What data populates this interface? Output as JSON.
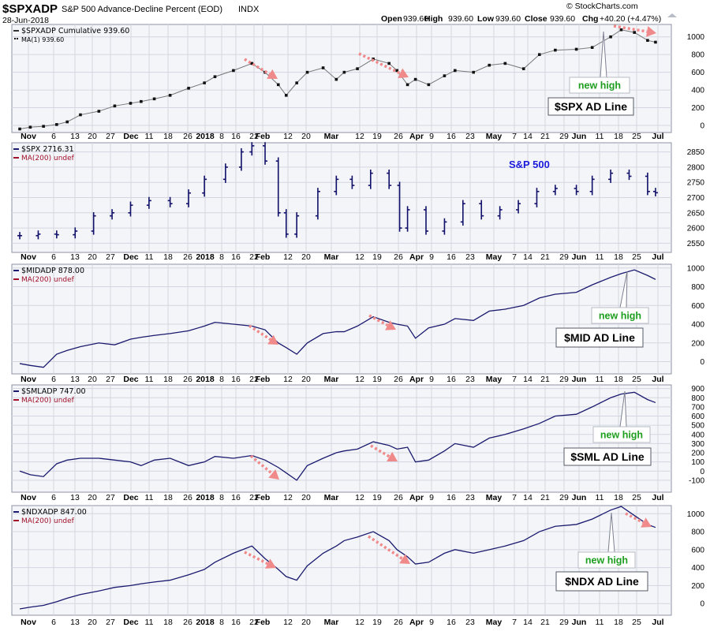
{
  "header": {
    "symbol": "$SPXADP",
    "name": "S&P 500 Advance-Decline Percent (EOD)",
    "exchange": "INDX",
    "date": "28-Jun-2018",
    "open_label": "Open",
    "open": "939.60",
    "high_label": "High",
    "high": "939.60",
    "low_label": "Low",
    "low": "939.60",
    "close_label": "Close",
    "close": "939.60",
    "chg_label": "Chg",
    "chg": "+40.20 (+4.47%)",
    "watermark": "© StockCharts.com"
  },
  "x_labels": [
    "Nov",
    "6",
    "13",
    "20",
    "27",
    "Dec",
    "11",
    "18",
    "26",
    "2018",
    "8",
    "16",
    "22",
    "Feb",
    "12",
    "20",
    "Mar",
    "12",
    "19",
    "26",
    "Apr",
    "9",
    "16",
    "23",
    "May",
    "7",
    "14",
    "21",
    "29",
    "Jun",
    "11",
    "18",
    "25",
    "Jul"
  ],
  "x_bold": [
    "Nov",
    "Dec",
    "2018",
    "Feb",
    "Mar",
    "Apr",
    "May",
    "Jun",
    "Jul"
  ],
  "panels": [
    {
      "id": "spx-ad",
      "legend": "$SPXADP Cumulative 939.60",
      "ma": "MA(1) 939.60",
      "ma_style": "small",
      "callout": "$SPX AD Line",
      "new_high": "new high"
    },
    {
      "id": "spx",
      "legend": "$SPX 2716.31",
      "ma": "MA(200) undef",
      "callout": "S&P 500"
    },
    {
      "id": "mid-ad",
      "legend": "$MIDADP 878.00",
      "ma": "MA(200) undef",
      "callout": "$MID AD Line",
      "new_high": "new high"
    },
    {
      "id": "sml-ad",
      "legend": "$SMLADP 747.00",
      "ma": "MA(200) undef",
      "callout": "$SML AD Line",
      "new_high": "new high"
    },
    {
      "id": "ndx-ad",
      "legend": "$NDXADP 847.00",
      "ma": "MA(200) undef",
      "callout": "$NDX AD Line",
      "new_high": "new high"
    }
  ],
  "colors": {
    "line": "#1a1a6e",
    "dots": "#111111",
    "bars": "#10106a",
    "arrow": "#f08a8a",
    "panel_bg": "#f4f5f9",
    "grid": "#d3d6e0",
    "new_high": "#1e9e1e",
    "sp_label": "#1b1bdc",
    "ma_label": "#a0102a"
  },
  "chart_data": [
    {
      "type": "line",
      "title": "$SPXADP Cumulative",
      "x": [
        "2017-10-30",
        "2017-11-03",
        "2017-11-08",
        "2017-11-13",
        "2017-11-17",
        "2017-11-22",
        "2017-11-29",
        "2017-12-05",
        "2017-12-11",
        "2017-12-15",
        "2017-12-20",
        "2017-12-26",
        "2018-01-02",
        "2018-01-08",
        "2018-01-12",
        "2018-01-19",
        "2018-01-26",
        "2018-01-31",
        "2018-02-05",
        "2018-02-08",
        "2018-02-12",
        "2018-02-16",
        "2018-02-22",
        "2018-02-27",
        "2018-03-02",
        "2018-03-07",
        "2018-03-13",
        "2018-03-19",
        "2018-03-22",
        "2018-03-26",
        "2018-03-29",
        "2018-04-03",
        "2018-04-09",
        "2018-04-13",
        "2018-04-20",
        "2018-04-26",
        "2018-05-02",
        "2018-05-09",
        "2018-05-15",
        "2018-05-21",
        "2018-05-29",
        "2018-06-04",
        "2018-06-11",
        "2018-06-15",
        "2018-06-20",
        "2018-06-25",
        "2018-06-28"
      ],
      "values": [
        -40,
        -20,
        -10,
        10,
        40,
        120,
        160,
        220,
        250,
        270,
        300,
        340,
        420,
        480,
        550,
        620,
        700,
        600,
        460,
        340,
        480,
        600,
        650,
        520,
        600,
        640,
        750,
        700,
        620,
        460,
        520,
        460,
        560,
        620,
        600,
        680,
        700,
        640,
        800,
        850,
        860,
        880,
        1000,
        1080,
        1050,
        960,
        940
      ],
      "ylim": [
        -80,
        1140
      ],
      "yticks": [
        0,
        200,
        400,
        600,
        800,
        1000
      ]
    },
    {
      "type": "ohlc",
      "title": "$SPX",
      "x": [
        "2017-10-30",
        "2017-11-06",
        "2017-11-13",
        "2017-11-20",
        "2017-11-27",
        "2017-12-04",
        "2017-12-11",
        "2017-12-18",
        "2017-12-26",
        "2018-01-02",
        "2018-01-08",
        "2018-01-16",
        "2018-01-22",
        "2018-01-26",
        "2018-01-31",
        "2018-02-05",
        "2018-02-08",
        "2018-02-12",
        "2018-02-20",
        "2018-02-27",
        "2018-03-05",
        "2018-03-12",
        "2018-03-19",
        "2018-03-23",
        "2018-03-26",
        "2018-04-02",
        "2018-04-09",
        "2018-04-16",
        "2018-04-23",
        "2018-04-30",
        "2018-05-07",
        "2018-05-14",
        "2018-05-21",
        "2018-05-29",
        "2018-06-04",
        "2018-06-11",
        "2018-06-18",
        "2018-06-25",
        "2018-06-28"
      ],
      "values": [
        2575,
        2580,
        2578,
        2590,
        2640,
        2650,
        2675,
        2690,
        2680,
        2715,
        2760,
        2800,
        2850,
        2870,
        2820,
        2650,
        2580,
        2640,
        2720,
        2760,
        2740,
        2780,
        2740,
        2600,
        2660,
        2590,
        2620,
        2680,
        2640,
        2660,
        2680,
        2720,
        2730,
        2720,
        2760,
        2780,
        2770,
        2720,
        2716
      ],
      "ylim": [
        2520,
        2880
      ],
      "yticks": [
        2550,
        2600,
        2650,
        2700,
        2750,
        2800,
        2850
      ]
    },
    {
      "type": "line",
      "title": "$MIDADP",
      "x": [
        "2017-10-30",
        "2017-11-03",
        "2017-11-08",
        "2017-11-13",
        "2017-11-17",
        "2017-11-22",
        "2017-11-29",
        "2017-12-05",
        "2017-12-11",
        "2017-12-15",
        "2017-12-20",
        "2017-12-26",
        "2018-01-02",
        "2018-01-08",
        "2018-01-12",
        "2018-01-19",
        "2018-01-26",
        "2018-01-31",
        "2018-02-05",
        "2018-02-08",
        "2018-02-12",
        "2018-02-16",
        "2018-02-22",
        "2018-02-27",
        "2018-03-02",
        "2018-03-07",
        "2018-03-13",
        "2018-03-19",
        "2018-03-22",
        "2018-03-26",
        "2018-03-29",
        "2018-04-03",
        "2018-04-09",
        "2018-04-13",
        "2018-04-20",
        "2018-04-26",
        "2018-05-02",
        "2018-05-09",
        "2018-05-15",
        "2018-05-21",
        "2018-05-29",
        "2018-06-04",
        "2018-06-11",
        "2018-06-15",
        "2018-06-20",
        "2018-06-25",
        "2018-06-28"
      ],
      "values": [
        -20,
        -40,
        -60,
        80,
        120,
        160,
        200,
        180,
        240,
        260,
        280,
        300,
        330,
        380,
        420,
        400,
        380,
        340,
        200,
        150,
        80,
        200,
        300,
        320,
        320,
        380,
        480,
        420,
        400,
        380,
        250,
        360,
        400,
        460,
        440,
        540,
        560,
        600,
        680,
        720,
        740,
        820,
        900,
        940,
        980,
        920,
        878
      ],
      "ylim": [
        -130,
        1040
      ],
      "yticks": [
        0,
        200,
        400,
        600,
        800,
        1000
      ]
    },
    {
      "type": "line",
      "title": "$SMLADP",
      "x": [
        "2017-10-30",
        "2017-11-03",
        "2017-11-08",
        "2017-11-13",
        "2017-11-17",
        "2017-11-22",
        "2017-11-29",
        "2017-12-05",
        "2017-12-11",
        "2017-12-15",
        "2017-12-20",
        "2017-12-26",
        "2018-01-02",
        "2018-01-08",
        "2018-01-12",
        "2018-01-19",
        "2018-01-26",
        "2018-01-31",
        "2018-02-05",
        "2018-02-08",
        "2018-02-12",
        "2018-02-16",
        "2018-02-22",
        "2018-02-27",
        "2018-03-02",
        "2018-03-07",
        "2018-03-13",
        "2018-03-19",
        "2018-03-22",
        "2018-03-26",
        "2018-03-29",
        "2018-04-03",
        "2018-04-09",
        "2018-04-13",
        "2018-04-20",
        "2018-04-26",
        "2018-05-02",
        "2018-05-09",
        "2018-05-15",
        "2018-05-21",
        "2018-05-29",
        "2018-06-04",
        "2018-06-11",
        "2018-06-15",
        "2018-06-20",
        "2018-06-25",
        "2018-06-28"
      ],
      "values": [
        0,
        -40,
        -60,
        80,
        120,
        140,
        140,
        120,
        100,
        60,
        120,
        140,
        60,
        100,
        160,
        140,
        170,
        120,
        40,
        -20,
        -100,
        60,
        140,
        200,
        220,
        240,
        320,
        280,
        240,
        260,
        100,
        120,
        220,
        300,
        260,
        360,
        400,
        460,
        520,
        600,
        620,
        700,
        800,
        840,
        860,
        780,
        747
      ],
      "ylim": [
        -230,
        940
      ],
      "yticks": [
        -100,
        0,
        100,
        200,
        300,
        400,
        500,
        600,
        700,
        800,
        900
      ]
    },
    {
      "type": "line",
      "title": "$NDXADP",
      "x": [
        "2017-10-30",
        "2017-11-03",
        "2017-11-08",
        "2017-11-13",
        "2017-11-17",
        "2017-11-22",
        "2017-11-29",
        "2017-12-05",
        "2017-12-11",
        "2017-12-15",
        "2017-12-20",
        "2017-12-26",
        "2018-01-02",
        "2018-01-08",
        "2018-01-12",
        "2018-01-19",
        "2018-01-26",
        "2018-01-31",
        "2018-02-05",
        "2018-02-08",
        "2018-02-12",
        "2018-02-16",
        "2018-02-22",
        "2018-02-27",
        "2018-03-02",
        "2018-03-07",
        "2018-03-13",
        "2018-03-19",
        "2018-03-22",
        "2018-03-26",
        "2018-03-29",
        "2018-04-03",
        "2018-04-09",
        "2018-04-13",
        "2018-04-20",
        "2018-04-26",
        "2018-05-02",
        "2018-05-09",
        "2018-05-15",
        "2018-05-21",
        "2018-05-29",
        "2018-06-04",
        "2018-06-11",
        "2018-06-15",
        "2018-06-20",
        "2018-06-25",
        "2018-06-28"
      ],
      "values": [
        -60,
        -40,
        -20,
        20,
        60,
        100,
        140,
        180,
        200,
        220,
        240,
        260,
        320,
        380,
        460,
        560,
        640,
        500,
        380,
        300,
        260,
        420,
        560,
        640,
        700,
        740,
        800,
        700,
        600,
        520,
        440,
        460,
        560,
        600,
        560,
        600,
        640,
        700,
        800,
        860,
        880,
        940,
        1040,
        1080,
        980,
        880,
        847
      ],
      "ylim": [
        -130,
        1090
      ],
      "yticks": [
        0,
        200,
        400,
        600,
        800,
        1000
      ]
    }
  ]
}
